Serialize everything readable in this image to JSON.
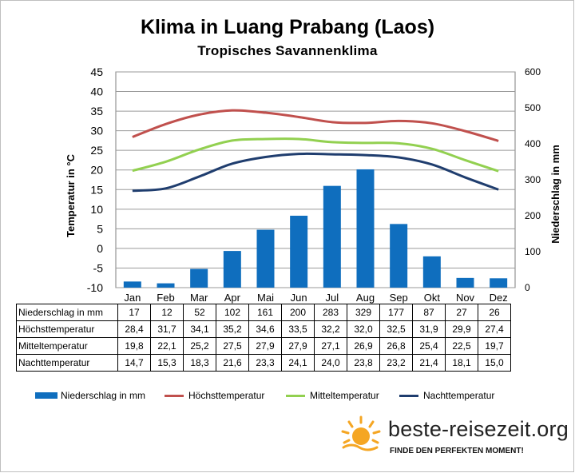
{
  "title": "Klima in Luang Prabang (Laos)",
  "subtitle": "Tropisches  Savannenklima",
  "chart_data": {
    "type": "bar",
    "categories": [
      "Jan",
      "Feb",
      "Mar",
      "Apr",
      "Mai",
      "Jun",
      "Jul",
      "Aug",
      "Sep",
      "Okt",
      "Nov",
      "Dez"
    ],
    "ylabel": "Temperatur in °C",
    "y2label": "Niederschlag in mm",
    "ylim": [
      -10,
      45
    ],
    "y2lim": [
      0,
      600
    ],
    "yticks": [
      "45",
      "40",
      "35",
      "30",
      "25",
      "20",
      "15",
      "10",
      "5",
      "0",
      "-5",
      "-10"
    ],
    "y2ticks": [
      "600",
      "500",
      "400",
      "300",
      "200",
      "100",
      "0"
    ],
    "grid": true,
    "legend_position": "bottom",
    "series": [
      {
        "name": "Niederschlag in mm",
        "type": "bar",
        "axis": "right",
        "color": "#0f6ebe",
        "values": [
          17,
          12,
          52,
          102,
          161,
          200,
          283,
          329,
          177,
          87,
          27,
          26
        ]
      },
      {
        "name": "Höchsttemperatur",
        "type": "line",
        "axis": "left",
        "color": "#c0504d",
        "values": [
          28.4,
          31.7,
          34.1,
          35.2,
          34.6,
          33.5,
          32.2,
          32.0,
          32.5,
          31.9,
          29.9,
          27.4
        ]
      },
      {
        "name": "Mitteltemperatur",
        "type": "line",
        "axis": "left",
        "color": "#92d050",
        "values": [
          19.8,
          22.1,
          25.2,
          27.5,
          27.9,
          27.9,
          27.1,
          26.9,
          26.8,
          25.4,
          22.5,
          19.7
        ]
      },
      {
        "name": "Nachttemperatur",
        "type": "line",
        "axis": "left",
        "color": "#1f3d6e",
        "values": [
          14.7,
          15.3,
          18.3,
          21.6,
          23.3,
          24.1,
          24.0,
          23.8,
          23.2,
          21.4,
          18.1,
          15.0
        ]
      }
    ]
  },
  "table": {
    "rows": [
      {
        "label": "Niederschlag in mm",
        "values": [
          "17",
          "12",
          "52",
          "102",
          "161",
          "200",
          "283",
          "329",
          "177",
          "87",
          "27",
          "26"
        ]
      },
      {
        "label": "Höchsttemperatur",
        "values": [
          "28,4",
          "31,7",
          "34,1",
          "35,2",
          "34,6",
          "33,5",
          "32,2",
          "32,0",
          "32,5",
          "31,9",
          "29,9",
          "27,4"
        ]
      },
      {
        "label": "Mitteltemperatur",
        "values": [
          "19,8",
          "22,1",
          "25,2",
          "27,5",
          "27,9",
          "27,9",
          "27,1",
          "26,9",
          "26,8",
          "25,4",
          "22,5",
          "19,7"
        ]
      },
      {
        "label": "Nachttemperatur",
        "values": [
          "14,7",
          "15,3",
          "18,3",
          "21,6",
          "23,3",
          "24,1",
          "24,0",
          "23,8",
          "23,2",
          "21,4",
          "18,1",
          "15,0"
        ]
      }
    ]
  },
  "brand": {
    "name": "beste-reisezeit.org",
    "tagline": "FINDE DEN PERFEKTEN MOMENT!",
    "logo_icon": "sun-icon",
    "logo_color": "#f5a623"
  }
}
